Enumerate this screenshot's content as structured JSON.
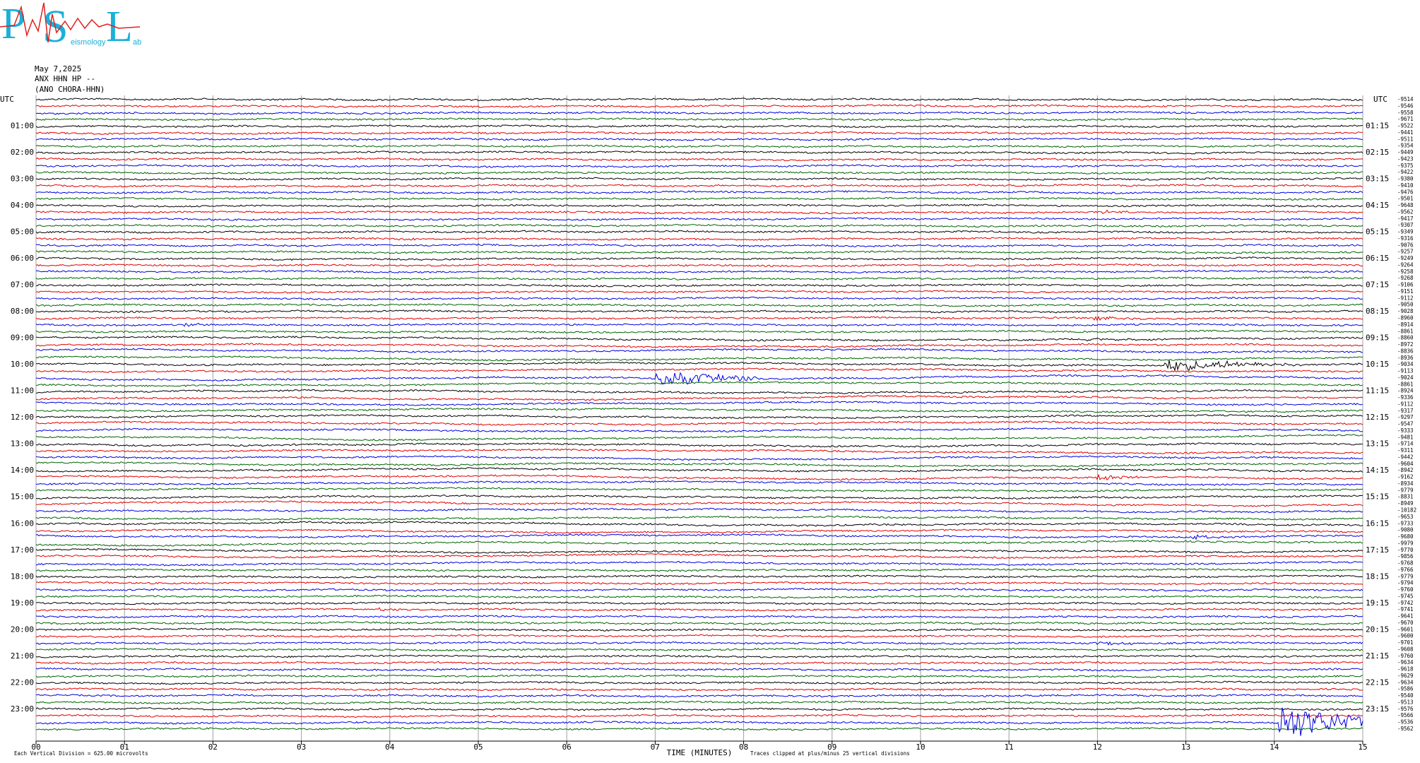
{
  "logo": {
    "p": "P",
    "s": "S",
    "l": "L",
    "sub1": "eismology",
    "sub2": "ab"
  },
  "chart_data": {
    "type": "helicorder",
    "date": "May 7,2025",
    "station": "ANX HHN HP --",
    "location": "(ANO CHORA-HHN)",
    "left_labels": [
      "UTC",
      "01:00",
      "02:00",
      "03:00",
      "04:00",
      "05:00",
      "06:00",
      "07:00",
      "08:00",
      "09:00",
      "10:00",
      "11:00",
      "12:00",
      "13:00",
      "14:00",
      "15:00",
      "16:00",
      "17:00",
      "18:00",
      "19:00",
      "20:00",
      "21:00",
      "22:00",
      "23:00"
    ],
    "right_labels": [
      "UTC",
      "01:15",
      "02:15",
      "03:15",
      "04:15",
      "05:15",
      "06:15",
      "07:15",
      "08:15",
      "09:15",
      "10:15",
      "11:15",
      "12:15",
      "13:15",
      "14:15",
      "15:15",
      "16:15",
      "17:15",
      "18:15",
      "19:15",
      "20:15",
      "21:15",
      "22:15",
      "23:15"
    ],
    "trace_offsets": [
      -9514,
      -9546,
      -9558,
      -9671,
      -9522,
      -9441,
      -9511,
      -9354,
      -9449,
      -9423,
      -9375,
      -9422,
      -9380,
      -9410,
      -9476,
      -9501,
      -9648,
      -9562,
      -9417,
      -9307,
      -9349,
      -9316,
      -9076,
      -9257,
      -9249,
      -9264,
      -9258,
      -9268,
      -9106,
      -9151,
      -9112,
      -9050,
      -9028,
      -8960,
      -8914,
      -8861,
      -8860,
      -8972,
      -8836,
      -8936,
      -9034,
      -9113,
      -9024,
      -8861,
      -8924,
      -9336,
      -9112,
      -9317,
      -9297,
      -9547,
      -9333,
      -9481,
      -9714,
      -9311,
      -9442,
      -9604,
      -8942,
      -9162,
      -8934,
      -9779,
      -8831,
      -8949,
      -10182,
      -9653,
      -9733,
      -9080,
      -9680,
      -9979,
      -9770,
      -9856,
      -9768,
      -9766,
      -9779,
      -9794,
      -9760,
      -9745,
      -9742,
      -9741,
      -9641,
      -9670,
      -9601,
      -9600,
      -9701,
      -9608,
      -9760,
      -9634,
      -9618,
      -9629,
      -9634,
      -9586,
      -9540,
      -9513,
      -9576,
      -9566,
      -9536,
      -9562
    ],
    "colors": [
      "#000000",
      "#e00000",
      "#0000e0",
      "#006400"
    ],
    "xlim": [
      0,
      15
    ],
    "xticks": [
      {
        "value": 0,
        "label": "00"
      },
      {
        "value": 1,
        "label": "01"
      },
      {
        "value": 2,
        "label": "02"
      },
      {
        "value": 3,
        "label": "03"
      },
      {
        "value": 4,
        "label": "04"
      },
      {
        "value": 5,
        "label": "05"
      },
      {
        "value": 6,
        "label": "06"
      },
      {
        "value": 7,
        "label": "07"
      },
      {
        "value": 8,
        "label": "08"
      },
      {
        "value": 9,
        "label": "09"
      },
      10,
      11,
      12,
      13,
      14,
      15
    ],
    "xlabel": "TIME (MINUTES)",
    "scale_note": "Each Vertical Division =  625.00 microvolts",
    "clip_note": "Traces clipped at plus/minus 25 vertical divisions",
    "grid": true
  }
}
